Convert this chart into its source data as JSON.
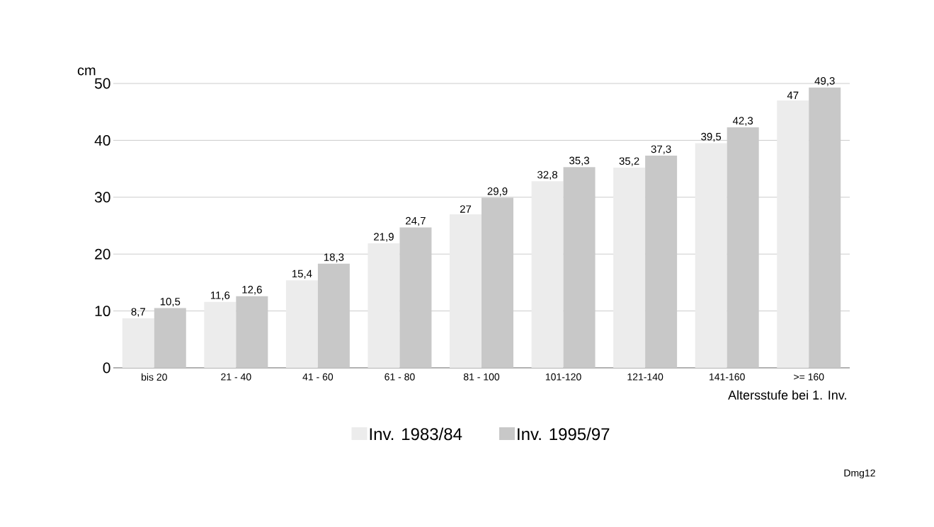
{
  "chart_data": {
    "type": "bar",
    "ylabel": "cm",
    "xlabel": "Altersstufe bei 1. Inv.",
    "categories": [
      "bis 20",
      "21 - 40",
      "41 - 60",
      "61 - 80",
      "81 - 100",
      "101-120",
      "121-140",
      "141-160",
      ">= 160"
    ],
    "series": [
      {
        "name": "Inv. 1983/84",
        "color": "#ececec",
        "values": [
          8.7,
          11.6,
          15.4,
          21.9,
          27,
          32.8,
          35.2,
          39.5,
          47
        ],
        "value_labels": [
          "8,7",
          "11,6",
          "15,4",
          "21,9",
          "27",
          "32,8",
          "35,2",
          "39,5",
          "47"
        ]
      },
      {
        "name": "Inv. 1995/97",
        "color": "#c8c8c8",
        "values": [
          10.5,
          12.6,
          18.3,
          24.7,
          29.9,
          35.3,
          37.3,
          42.3,
          49.3
        ],
        "value_labels": [
          "10,5",
          "12,6",
          "18,3",
          "24,7",
          "29,9",
          "35,3",
          "37,3",
          "42,3",
          "49,3"
        ]
      }
    ],
    "ylim": [
      0,
      50
    ],
    "yticks": [
      0,
      10,
      20,
      30,
      40,
      50
    ],
    "grid": "y",
    "legend": "bottom",
    "annotations": [
      "Dmg12"
    ]
  }
}
